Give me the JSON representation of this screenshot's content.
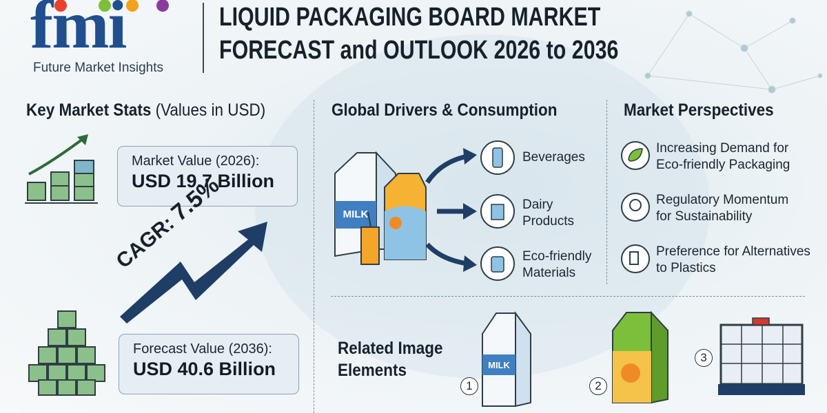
{
  "logo": {
    "mark": "fmi",
    "name": "Future Market Insights"
  },
  "header": {
    "title_line1": "LIQUID PACKAGING BOARD MARKET",
    "title_line2": "FORECAST and OUTLOOK 2026 to 2036"
  },
  "stats": {
    "heading": "Key Market Stats",
    "heading_note": "(Values in USD)",
    "market_value": {
      "label": "Market Value (2026):",
      "value": "USD 19.7 Billion"
    },
    "cagr": {
      "label": "CAGR:",
      "value": "7.5%"
    },
    "forecast_value": {
      "label": "Forecast Value (2036):",
      "value": "USD 40.6 Billion"
    }
  },
  "drivers": {
    "heading": "Global Drivers & Consumption",
    "carton_label": "MILK",
    "items": [
      "Beverages",
      "Dairy Products",
      "Eco-friendly Materials"
    ]
  },
  "perspectives": {
    "heading": "Market Perspectives",
    "items": [
      "Increasing Demand for Eco-friendly Packaging",
      "Regulatory Momentum for Sustainability",
      "Preference for Alternatives to Plastics"
    ]
  },
  "related": {
    "heading": "Related Image Elements",
    "items": [
      {
        "number": "1",
        "label": "MILK"
      },
      {
        "number": "2"
      },
      {
        "number": "3"
      }
    ]
  }
}
